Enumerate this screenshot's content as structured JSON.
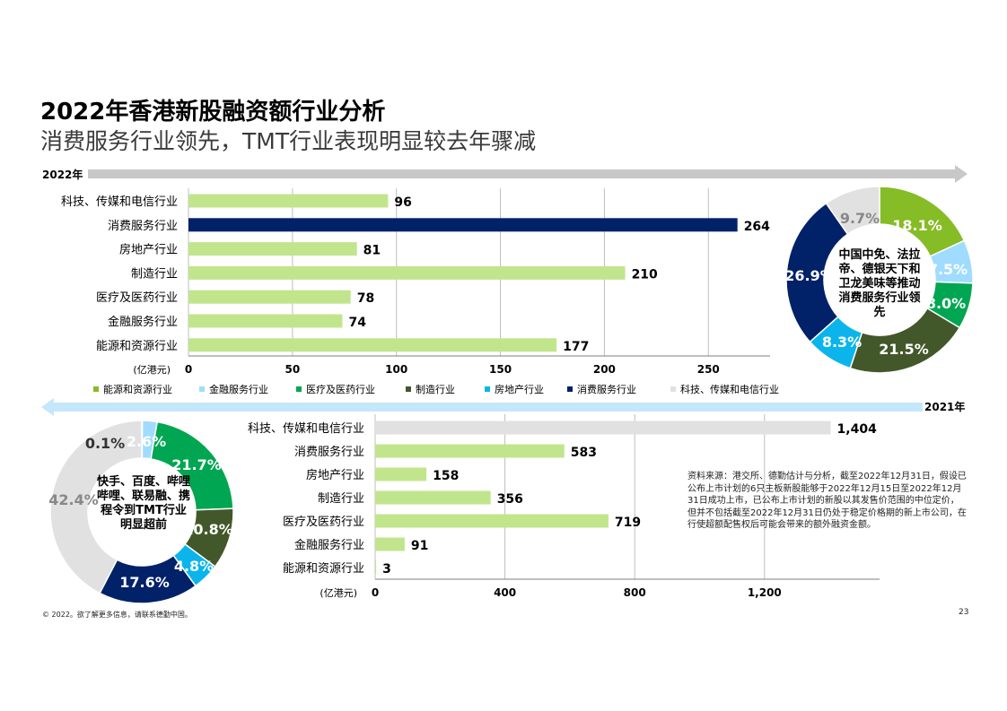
{
  "title": "2022年香港新股融资额行业分析",
  "subtitle": "消费服务行业领先，TMT行业表现明显较去年骤减",
  "year_2022_label": "2022年",
  "year_2021_label": "2021年",
  "colors": {
    "energy": "#86bc25",
    "finance": "#a0dcff",
    "medical": "#00a651",
    "manufacturing": "#43582a",
    "property": "#0bb5ec",
    "consumer": "#012169",
    "tmt": "#e1e1e2",
    "bar": "#c1e58d",
    "bar_highlight": "#012169",
    "bar_tmt_2021": "#e1e1e2",
    "arrow": "#c8c8c8",
    "arrow_2021": "#c4e7fb"
  },
  "chart_data": [
    {
      "type": "bar",
      "orientation": "horizontal",
      "categories": [
        "科技、传媒和电信行业",
        "消费服务行业",
        "房地产行业",
        "制造行业",
        "医疗及医药行业",
        "金融服务行业",
        "能源和资源行业"
      ],
      "values": [
        96,
        264,
        81,
        210,
        78,
        74,
        177
      ],
      "value_labels": [
        "96",
        "264",
        "81",
        "210",
        "78",
        "74",
        "177"
      ],
      "highlight_index": 1,
      "xlabel": "(亿港元)",
      "xticks": [
        0,
        50,
        100,
        150,
        200,
        250
      ],
      "xtick_labels": [
        "0",
        "50",
        "100",
        "150",
        "200",
        "250"
      ],
      "xlim": [
        0,
        280
      ],
      "grid": true
    },
    {
      "type": "pie",
      "labels": [
        "能源和资源行业",
        "金融服务行业",
        "医疗及医药行业",
        "制造行业",
        "房地产行业",
        "消费服务行业",
        "科技、传媒和电信行业"
      ],
      "values": [
        18.1,
        7.5,
        8.0,
        21.5,
        8.3,
        26.9,
        9.7
      ],
      "value_labels": [
        "18.1%",
        "7.5%",
        "8.0%",
        "21.5%",
        "8.3%",
        "26.9%",
        "9.7%"
      ],
      "center_text": "中国中免、法拉帝、德银天下和卫龙美味等推动消费服务行业领先"
    },
    {
      "type": "bar",
      "orientation": "horizontal",
      "categories": [
        "科技、传媒和电信行业",
        "消费服务行业",
        "房地产行业",
        "制造行业",
        "医疗及医药行业",
        "金融服务行业",
        "能源和资源行业"
      ],
      "values": [
        1404,
        583,
        158,
        356,
        719,
        91,
        3
      ],
      "value_labels": [
        "1,404",
        "583",
        "158",
        "356",
        "719",
        "91",
        "3"
      ],
      "highlight_index": 0,
      "xlabel": "(亿港元)",
      "xticks": [
        0,
        400,
        800,
        1200
      ],
      "xtick_labels": [
        "0",
        "400",
        "800",
        "1,200"
      ],
      "xlim": [
        0,
        1400
      ],
      "grid": true
    },
    {
      "type": "pie",
      "labels": [
        "能源和资源行业",
        "金融服务行业",
        "医疗及医药行业",
        "制造行业",
        "房地产行业",
        "消费服务行业",
        "科技、传媒和电信行业"
      ],
      "values": [
        0.1,
        2.6,
        21.7,
        10.8,
        4.8,
        17.6,
        42.4
      ],
      "value_labels": [
        "0.1%",
        "2.6%",
        "21.7%",
        "10.8%",
        "4.8%",
        "17.6%",
        "42.4%"
      ],
      "center_text": "快手、百度、哔哩哔哩、联易融、携程令到TMT行业明显超前"
    }
  ],
  "legend": [
    "能源和资源行业",
    "金融服务行业",
    "医疗及医药行业",
    "制造行业",
    "房地产行业",
    "消费服务行业",
    "科技、传媒和电信行业"
  ],
  "source_note": "资料来源：港交所、德勤估计与分析，截至2022年12月31日，假设已公布上市计划的6只主板新股能够于2022年12月15日至2022年12月31日成功上市，已公布上市计划的新股以其发售价范围的中位定价，但并不包括截至2022年12月31日仍处于稳定价格期的新上市公司，在行使超额配售权后可能会带来的额外融资金额。",
  "copyright": "© 2022。欲了解更多信息，请联系德勤中国。",
  "page_number": "23"
}
